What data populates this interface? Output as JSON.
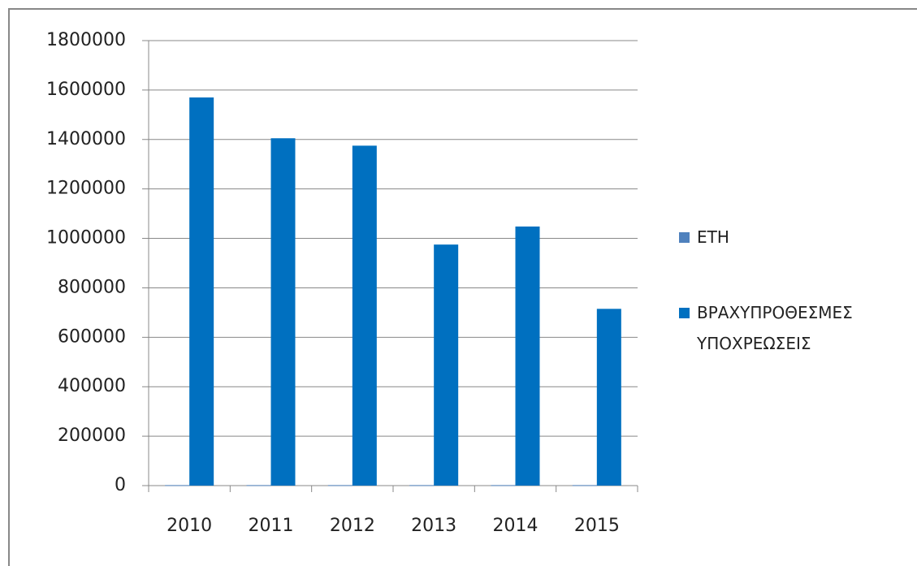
{
  "chart_data": {
    "type": "bar",
    "categories": [
      "2010",
      "2011",
      "2012",
      "2013",
      "2014",
      "2015"
    ],
    "series": [
      {
        "name": "ΕΤΗ",
        "color": "#4f81bd",
        "values": [
          2010,
          2011,
          2012,
          2013,
          2014,
          2015
        ]
      },
      {
        "name": "ΒΡΑΧΥΠΡΟΘΕΣΜΕΣ ΥΠΟΧΡΕΩΣΕΙΣ",
        "color": "#0070c0",
        "values": [
          1570000,
          1405000,
          1375000,
          975000,
          1048000,
          715000
        ]
      }
    ],
    "ylim": [
      0,
      1800000
    ],
    "yticks": [
      0,
      200000,
      400000,
      600000,
      800000,
      1000000,
      1200000,
      1400000,
      1600000,
      1800000
    ],
    "grid": true,
    "legend": "right"
  }
}
